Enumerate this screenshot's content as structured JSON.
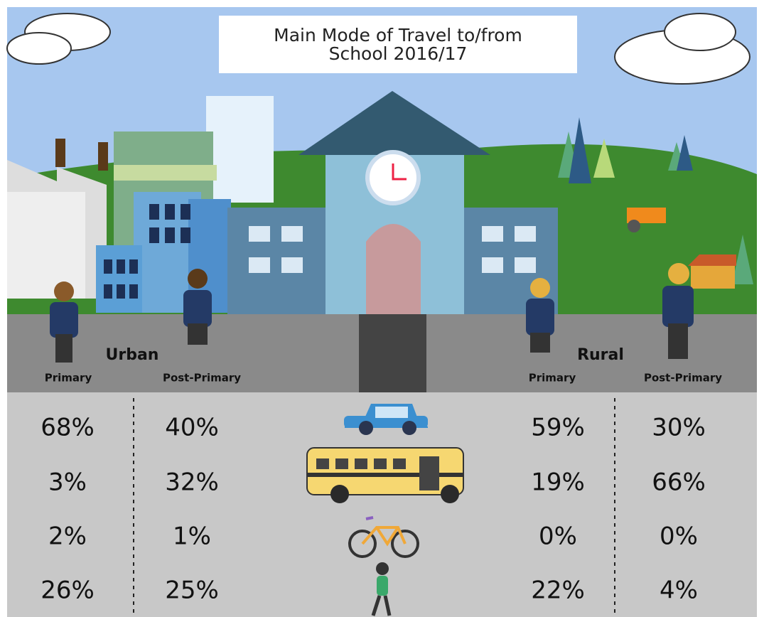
{
  "header": {
    "title": "Main Mode of Travel to/from School 2016/17"
  },
  "groups": [
    {
      "label": "Urban",
      "columns": [
        "Primary",
        "Post-Primary"
      ]
    },
    {
      "label": "Rural",
      "columns": [
        "Primary",
        "Post-Primary"
      ]
    }
  ],
  "table": {
    "rows": [
      [
        "68%",
        "40%",
        "59%",
        "30%"
      ],
      [
        "3%",
        "32%",
        "19%",
        "66%"
      ],
      [
        "2%",
        "1%",
        "0%",
        "0%"
      ],
      [
        "26%",
        "25%",
        "22%",
        "4%"
      ]
    ]
  }
}
